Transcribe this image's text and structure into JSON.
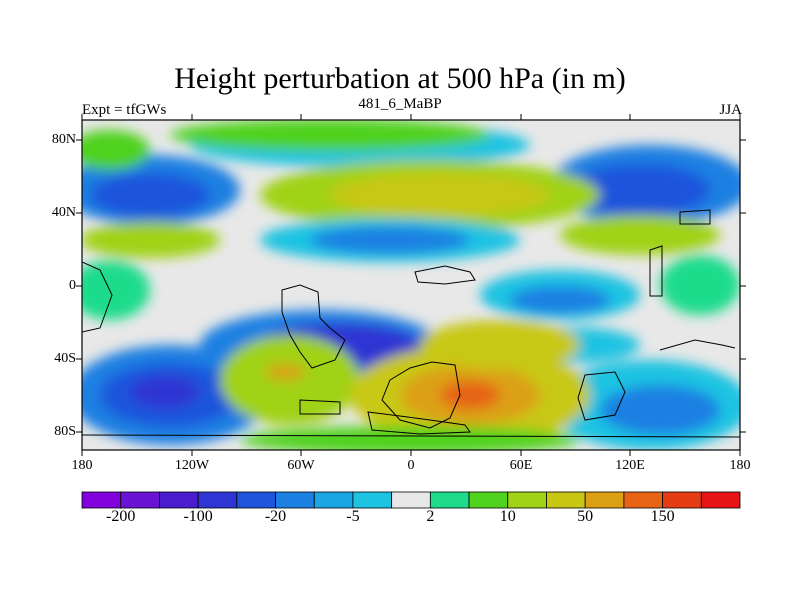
{
  "title": "Height perturbation at 500 hPa (in m)",
  "left_label": "Expt = tfGWs",
  "center_label": "481_6_MaBP",
  "right_label": "JJA",
  "lat_ticks": [
    "80N",
    "40N",
    "0",
    "40S",
    "80S"
  ],
  "lon_ticks": [
    "180",
    "120W",
    "60W",
    "0",
    "60E",
    "120E",
    "180"
  ],
  "colorbar": {
    "colors": [
      "#8200dc",
      "#6a12d6",
      "#4a1ecf",
      "#2f35d2",
      "#1e55dc",
      "#1c80e2",
      "#1aa6e2",
      "#1ec3e2",
      "#e8e8e8",
      "#1edc8c",
      "#50d21e",
      "#a0d218",
      "#c8c814",
      "#dca014",
      "#e66414",
      "#e63c14",
      "#e61414"
    ],
    "labels": [
      "-200",
      "-100",
      "-20",
      "-5",
      "2",
      "10",
      "50",
      "150"
    ]
  },
  "colors": {
    "strong_neg": "#2f35d2",
    "neg": "#1e55dc",
    "mid_neg": "#1c80e2",
    "weak_neg": "#1ec3e2",
    "neutral": "#e8e8e8",
    "weak_pos": "#1edc8c",
    "pos": "#50d21e",
    "mid_pos": "#a0d218",
    "strong_pos": "#c8c814",
    "orange": "#dca014",
    "deep_orange": "#e66414"
  }
}
